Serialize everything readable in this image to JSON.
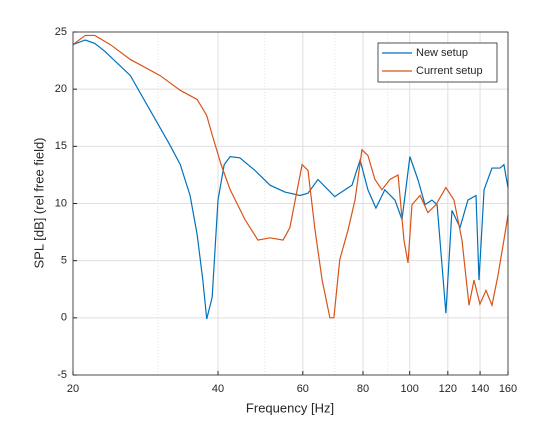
{
  "chart_data": {
    "type": "line",
    "x_label": "Frequency [Hz]",
    "y_label": "SPL [dB] (rel free field)",
    "xscale": "log",
    "xlim": [
      20,
      160
    ],
    "ylim": [
      -5,
      25
    ],
    "xticks": [
      20,
      40,
      60,
      80,
      100,
      120,
      140,
      160
    ],
    "xminorticks": [
      30,
      50,
      70,
      90
    ],
    "yticks": [
      -5,
      0,
      5,
      10,
      15,
      20,
      25
    ],
    "grid": true,
    "legend": "upper right",
    "series": [
      {
        "name": "New setup",
        "color": "#0072bd",
        "x": [
          20,
          21.2,
          22.2,
          23.3,
          26.3,
          31.8,
          33.4,
          35.0,
          36.2,
          37.2,
          37.9,
          38.9,
          40.0,
          41.2,
          42.4,
          44.4,
          47.7,
          51.3,
          55.1,
          59.2,
          61.5,
          64.5,
          67.7,
          69.9,
          73.4,
          75.9,
          78.9,
          81.9,
          85.1,
          88.8,
          93.2,
          96.4,
          100.1,
          104.0,
          107.6,
          111.2,
          114.0,
          118.9,
          122.4,
          127.2,
          132.1,
          137.3,
          139.3,
          142.7,
          148.2,
          154.0,
          156.9,
          160
        ],
        "values": [
          23.9,
          24.3,
          24.0,
          23.3,
          21.2,
          15.1,
          13.4,
          10.7,
          7.3,
          3.3,
          -0.1,
          1.8,
          10.3,
          13.4,
          14.1,
          14.0,
          12.9,
          11.6,
          11.0,
          10.7,
          10.9,
          12.1,
          11.2,
          10.6,
          11.2,
          11.6,
          13.8,
          11.2,
          9.6,
          11.2,
          10.3,
          8.6,
          14.1,
          12.1,
          9.9,
          10.3,
          9.9,
          0.4,
          9.4,
          7.9,
          10.3,
          10.7,
          3.3,
          11.2,
          13.1,
          13.1,
          13.4,
          11.4
        ]
      },
      {
        "name": "Current setup",
        "color": "#d95319",
        "x": [
          20,
          21.2,
          22.2,
          23.9,
          26.3,
          30.3,
          33.4,
          36.2,
          37.9,
          38.9,
          40.6,
          42.4,
          45.5,
          48.4,
          51.3,
          54.6,
          56.4,
          58.1,
          59.8,
          61.5,
          63.6,
          65.8,
          68.3,
          69.6,
          71.6,
          74.5,
          77.0,
          79.6,
          81.9,
          84.7,
          87.6,
          91.0,
          94.6,
          97.3,
          99.2,
          101.1,
          105.1,
          109.1,
          113.4,
          118.9,
          123.6,
          128.4,
          132.8,
          136.0,
          139.9,
          144.0,
          148.2,
          152.5,
          156.9,
          160
        ],
        "values": [
          23.9,
          24.7,
          24.7,
          23.9,
          22.6,
          21.2,
          19.9,
          19.1,
          17.7,
          16.0,
          13.4,
          11.2,
          8.6,
          6.8,
          7.0,
          6.8,
          7.9,
          10.7,
          13.4,
          12.9,
          7.7,
          3.3,
          0,
          0,
          5.1,
          7.7,
          10.3,
          14.7,
          14.2,
          12.1,
          11.2,
          12.1,
          12.5,
          6.8,
          4.8,
          9.9,
          10.7,
          9.2,
          9.9,
          11.4,
          10.3,
          6.8,
          1.1,
          3.3,
          1.2,
          2.4,
          1.1,
          3.7,
          6.8,
          9.0
        ]
      }
    ]
  }
}
